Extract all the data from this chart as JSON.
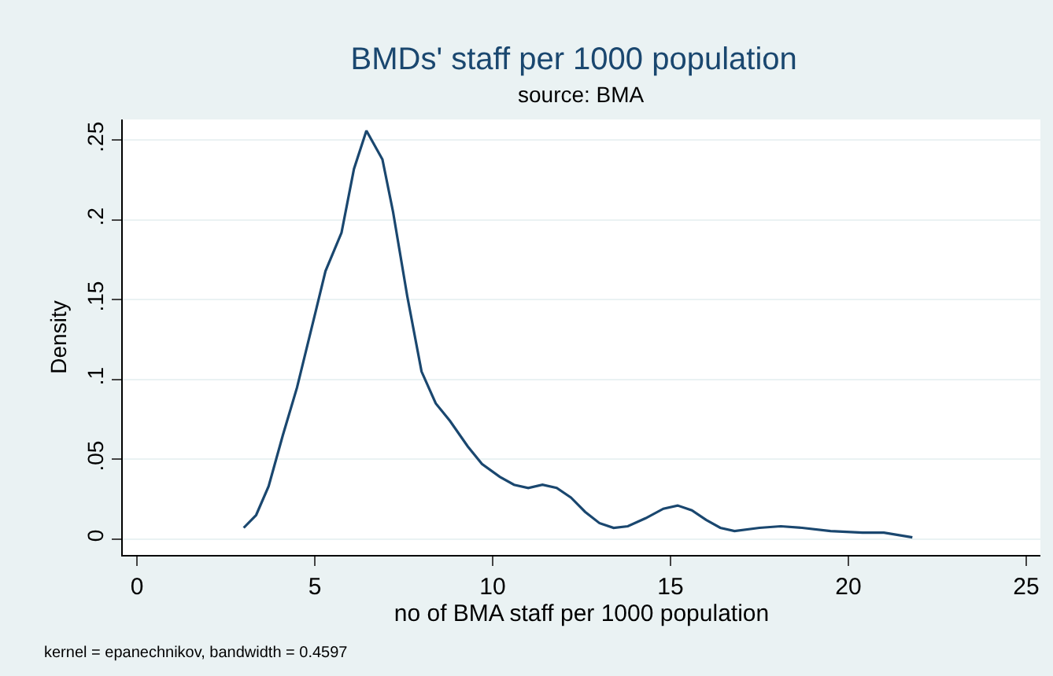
{
  "chart_data": {
    "type": "line",
    "title": "BMDs' staff per 1000 population",
    "subtitle": "source: BMA",
    "xlabel": "no of BMA staff per 1000 population",
    "ylabel": "Density",
    "annotations": [
      "kernel = epanechnikov, bandwidth = 0.4597"
    ],
    "x": [
      3.0,
      3.35,
      3.7,
      4.1,
      4.5,
      5.05,
      5.3,
      5.75,
      6.1,
      6.45,
      6.9,
      7.2,
      7.6,
      8.0,
      8.4,
      8.8,
      9.3,
      9.7,
      10.2,
      10.6,
      11.0,
      11.4,
      11.8,
      12.2,
      12.6,
      13.0,
      13.4,
      13.8,
      14.3,
      14.8,
      15.2,
      15.6,
      16.0,
      16.4,
      16.8,
      17.5,
      18.1,
      18.7,
      19.5,
      20.4,
      21.0,
      21.8
    ],
    "series": [
      {
        "color": "#1a476f",
        "values": [
          0.007,
          0.015,
          0.033,
          0.065,
          0.095,
          0.145,
          0.168,
          0.192,
          0.232,
          0.256,
          0.238,
          0.205,
          0.152,
          0.105,
          0.085,
          0.074,
          0.058,
          0.047,
          0.039,
          0.034,
          0.032,
          0.034,
          0.032,
          0.026,
          0.017,
          0.01,
          0.007,
          0.008,
          0.013,
          0.019,
          0.021,
          0.018,
          0.012,
          0.007,
          0.005,
          0.007,
          0.008,
          0.007,
          0.005,
          0.004,
          0.004,
          0.001
        ]
      }
    ],
    "xlim": [
      -0.4,
      25.4
    ],
    "xticks": [
      0,
      5,
      10,
      15,
      20,
      25
    ],
    "ylim": [
      -0.01,
      0.263
    ],
    "yticks": [
      {
        "value": 0,
        "label": "0"
      },
      {
        "value": 0.05,
        "label": ".05"
      },
      {
        "value": 0.1,
        "label": ".1"
      },
      {
        "value": 0.15,
        "label": ".15"
      },
      {
        "value": 0.2,
        "label": ".2"
      },
      {
        "value": 0.25,
        "label": ".25"
      }
    ],
    "grid": "y",
    "marker": "none",
    "line_style": "solid"
  }
}
